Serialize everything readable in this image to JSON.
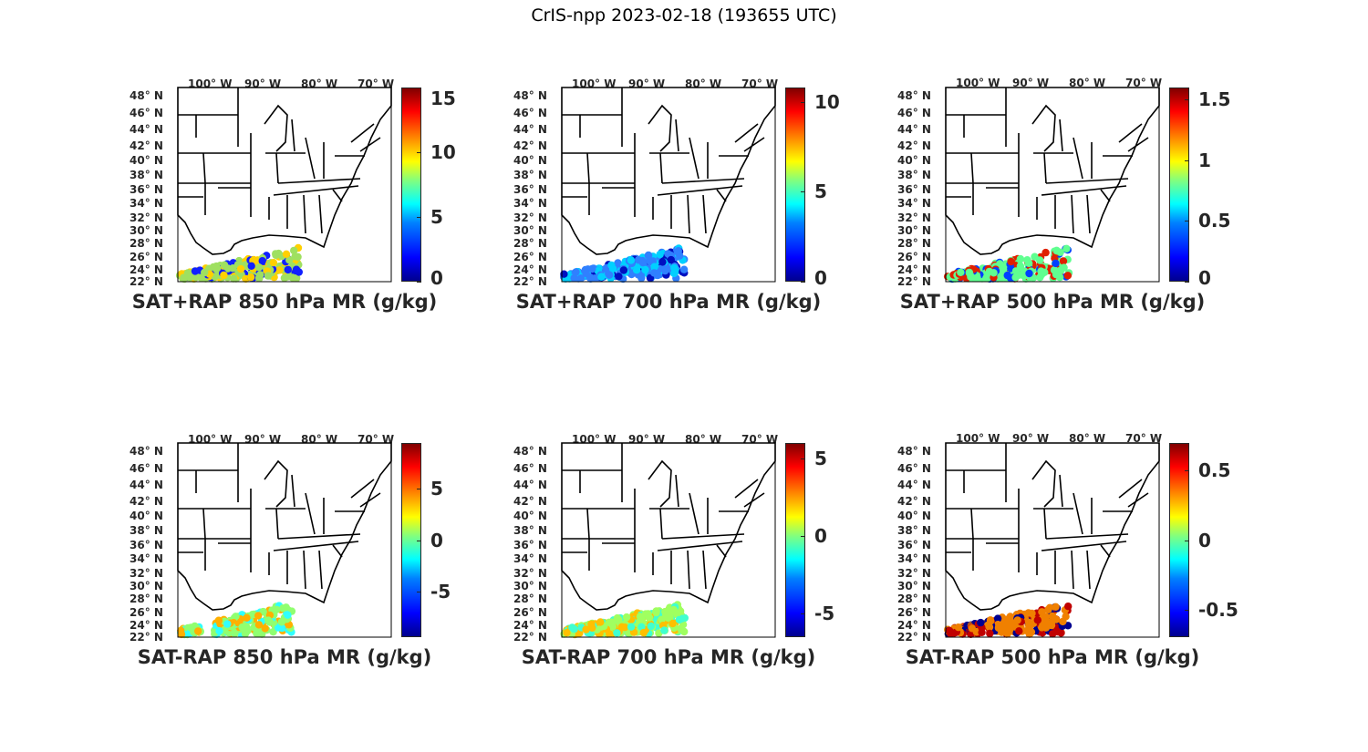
{
  "figure": {
    "title": "CrIS-npp 2023-02-18 (193655 UTC)"
  },
  "axes": {
    "lon_ticks": [
      "100° W",
      "90° W",
      "80° W",
      "70° W"
    ],
    "lat_ticks": [
      "48° N",
      "46° N",
      "44° N",
      "42° N",
      "40° N",
      "38° N",
      "36° N",
      "34° N",
      "32° N",
      "30° N",
      "28° N",
      "26° N",
      "24° N",
      "22° N"
    ]
  },
  "panels": [
    {
      "title": "SAT+RAP 850 hPa MR (g/kg)",
      "colorbar": {
        "min": 0,
        "max": 15,
        "ticks": [
          "15",
          "10",
          "5",
          "0"
        ],
        "tick_values": [
          15,
          10,
          5,
          0
        ]
      },
      "swath": {
        "fill": "#9fe060",
        "accent": "#ffd000",
        "low": "#1020ff"
      }
    },
    {
      "title": "SAT+RAP 700 hPa MR (g/kg)",
      "colorbar": {
        "min": 0,
        "max": 10.8,
        "ticks": [
          "10",
          "5",
          "0"
        ],
        "tick_values": [
          10,
          5,
          0
        ]
      },
      "swath": {
        "fill": "#3080ff",
        "accent": "#00d0ff",
        "low": "#0010c0"
      }
    },
    {
      "title": "SAT+RAP 500 hPa MR (g/kg)",
      "colorbar": {
        "min": 0,
        "max": 1.6,
        "ticks": [
          "1.5",
          "1",
          "0.5",
          "0"
        ],
        "tick_values": [
          1.5,
          1,
          0.5,
          0
        ]
      },
      "swath": {
        "fill": "#60ff90",
        "accent": "#e02000",
        "low": "#0040ff"
      }
    },
    {
      "title": "SAT-RAP 850 hPa MR (g/kg)",
      "colorbar": {
        "min": -9.5,
        "max": 9.5,
        "ticks": [
          "5",
          "0",
          "-5"
        ],
        "tick_values": [
          5,
          0,
          -5
        ]
      },
      "swath": {
        "fill": "#90ff70",
        "accent": "#ffb000",
        "low": "#30ffff"
      }
    },
    {
      "title": "SAT-RAP 700 hPa MR (g/kg)",
      "colorbar": {
        "min": -6.5,
        "max": 6,
        "ticks": [
          "5",
          "0",
          "-5"
        ],
        "tick_values": [
          5,
          0,
          -5
        ]
      },
      "swath": {
        "fill": "#a0ff60",
        "accent": "#ffc000",
        "low": "#40ffd0"
      }
    },
    {
      "title": "SAT-RAP 500 hPa MR (g/kg)",
      "colorbar": {
        "min": -0.7,
        "max": 0.7,
        "ticks": [
          "0.5",
          "0",
          "-0.5"
        ],
        "tick_values": [
          0.5,
          0,
          -0.5
        ]
      },
      "swath": {
        "fill": "#f08000",
        "accent": "#c00000",
        "low": "#00008f"
      }
    }
  ]
}
